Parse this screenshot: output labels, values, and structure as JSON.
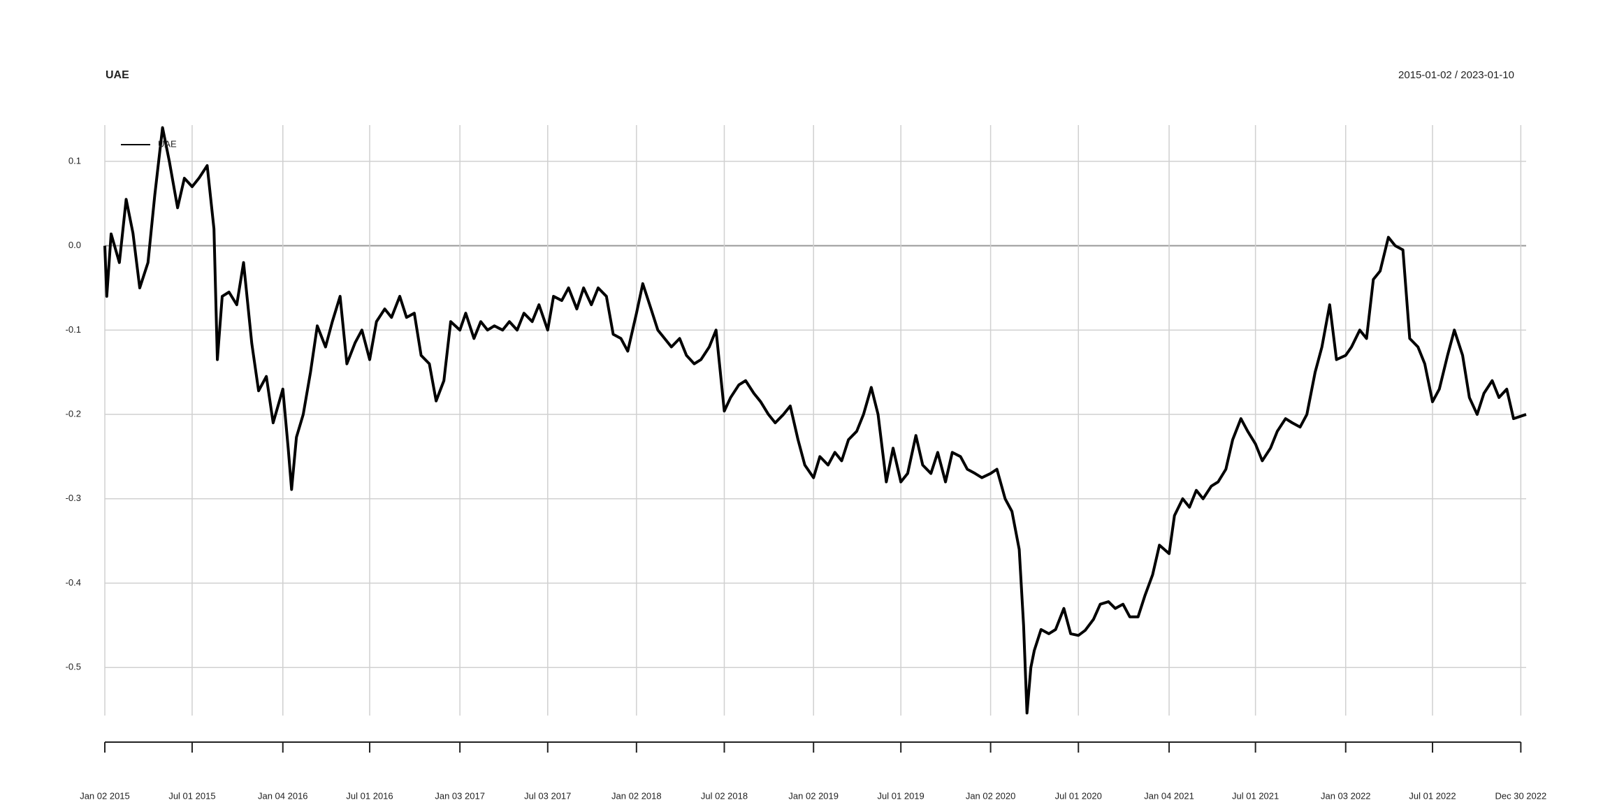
{
  "chart_data": {
    "type": "line",
    "title": "UAE",
    "date_range": "2015-01-02 / 2023-01-10",
    "x": [
      "2015-01-02",
      "2015-01-06",
      "2015-01-15",
      "2015-02-01",
      "2015-02-15",
      "2015-03-01",
      "2015-03-15",
      "2015-04-01",
      "2015-04-15",
      "2015-05-01",
      "2015-05-15",
      "2015-06-01",
      "2015-06-15",
      "2015-07-01",
      "2015-07-15",
      "2015-08-01",
      "2015-08-15",
      "2015-08-22",
      "2015-09-01",
      "2015-09-15",
      "2015-10-01",
      "2015-10-15",
      "2015-11-01",
      "2015-11-15",
      "2015-12-01",
      "2015-12-15",
      "2016-01-04",
      "2016-01-15",
      "2016-01-22",
      "2016-02-01",
      "2016-02-15",
      "2016-03-01",
      "2016-03-15",
      "2016-04-01",
      "2016-04-15",
      "2016-05-01",
      "2016-05-15",
      "2016-06-01",
      "2016-06-15",
      "2016-07-01",
      "2016-07-15",
      "2016-08-01",
      "2016-08-15",
      "2016-09-01",
      "2016-09-15",
      "2016-10-01",
      "2016-10-15",
      "2016-11-01",
      "2016-11-15",
      "2016-12-01",
      "2016-12-15",
      "2017-01-03",
      "2017-01-15",
      "2017-02-01",
      "2017-02-15",
      "2017-03-01",
      "2017-03-15",
      "2017-04-01",
      "2017-04-15",
      "2017-05-01",
      "2017-05-15",
      "2017-06-01",
      "2017-06-15",
      "2017-07-03",
      "2017-07-15",
      "2017-08-01",
      "2017-08-15",
      "2017-09-01",
      "2017-09-15",
      "2017-10-01",
      "2017-10-15",
      "2017-11-01",
      "2017-11-15",
      "2017-12-01",
      "2017-12-15",
      "2018-01-02",
      "2018-01-15",
      "2018-02-01",
      "2018-02-15",
      "2018-03-01",
      "2018-03-15",
      "2018-04-01",
      "2018-04-15",
      "2018-05-01",
      "2018-05-15",
      "2018-06-01",
      "2018-06-15",
      "2018-07-02",
      "2018-07-15",
      "2018-08-01",
      "2018-08-15",
      "2018-09-01",
      "2018-09-15",
      "2018-10-01",
      "2018-10-15",
      "2018-11-01",
      "2018-11-15",
      "2018-12-01",
      "2018-12-15",
      "2019-01-02",
      "2019-01-15",
      "2019-02-01",
      "2019-02-15",
      "2019-03-01",
      "2019-03-15",
      "2019-04-01",
      "2019-04-15",
      "2019-05-01",
      "2019-05-15",
      "2019-06-01",
      "2019-06-15",
      "2019-07-01",
      "2019-07-15",
      "2019-08-01",
      "2019-08-15",
      "2019-09-01",
      "2019-09-15",
      "2019-10-01",
      "2019-10-15",
      "2019-11-01",
      "2019-11-15",
      "2019-12-01",
      "2019-12-15",
      "2020-01-02",
      "2020-01-15",
      "2020-02-01",
      "2020-02-15",
      "2020-03-01",
      "2020-03-10",
      "2020-03-17",
      "2020-03-25",
      "2020-04-01",
      "2020-04-15",
      "2020-05-01",
      "2020-05-15",
      "2020-06-01",
      "2020-06-15",
      "2020-07-01",
      "2020-07-15",
      "2020-08-01",
      "2020-08-15",
      "2020-09-01",
      "2020-09-15",
      "2020-10-01",
      "2020-10-15",
      "2020-11-01",
      "2020-11-15",
      "2020-12-01",
      "2020-12-15",
      "2021-01-04",
      "2021-01-15",
      "2021-02-01",
      "2021-02-15",
      "2021-03-01",
      "2021-03-15",
      "2021-04-01",
      "2021-04-15",
      "2021-05-01",
      "2021-05-15",
      "2021-06-01",
      "2021-06-15",
      "2021-07-01",
      "2021-07-15",
      "2021-08-01",
      "2021-08-15",
      "2021-09-01",
      "2021-09-15",
      "2021-10-01",
      "2021-10-15",
      "2021-11-01",
      "2021-11-15",
      "2021-12-01",
      "2021-12-15",
      "2022-01-03",
      "2022-01-15",
      "2022-02-01",
      "2022-02-15",
      "2022-03-01",
      "2022-03-15",
      "2022-04-01",
      "2022-04-15",
      "2022-05-01",
      "2022-05-15",
      "2022-06-01",
      "2022-06-15",
      "2022-07-01",
      "2022-07-15",
      "2022-08-01",
      "2022-08-15",
      "2022-09-01",
      "2022-09-15",
      "2022-10-01",
      "2022-10-15",
      "2022-11-01",
      "2022-11-15",
      "2022-12-01",
      "2022-12-15",
      "2023-01-10"
    ],
    "series": [
      {
        "name": "UAE",
        "color": "#000000",
        "values": [
          0.0,
          -0.06,
          0.014,
          -0.02,
          0.055,
          0.015,
          -0.05,
          -0.02,
          0.06,
          0.14,
          0.1,
          0.045,
          0.08,
          0.07,
          0.08,
          0.095,
          0.02,
          -0.135,
          -0.06,
          -0.055,
          -0.07,
          -0.02,
          -0.116,
          -0.172,
          -0.155,
          -0.21,
          -0.17,
          -0.24,
          -0.289,
          -0.227,
          -0.2,
          -0.15,
          -0.095,
          -0.12,
          -0.09,
          -0.06,
          -0.14,
          -0.115,
          -0.1,
          -0.135,
          -0.09,
          -0.075,
          -0.085,
          -0.06,
          -0.085,
          -0.08,
          -0.13,
          -0.14,
          -0.184,
          -0.16,
          -0.09,
          -0.1,
          -0.08,
          -0.11,
          -0.09,
          -0.1,
          -0.095,
          -0.1,
          -0.09,
          -0.1,
          -0.08,
          -0.09,
          -0.07,
          -0.1,
          -0.06,
          -0.065,
          -0.05,
          -0.075,
          -0.05,
          -0.07,
          -0.05,
          -0.06,
          -0.105,
          -0.11,
          -0.125,
          -0.08,
          -0.045,
          -0.075,
          -0.1,
          -0.11,
          -0.12,
          -0.11,
          -0.13,
          -0.14,
          -0.135,
          -0.12,
          -0.1,
          -0.196,
          -0.18,
          -0.165,
          -0.16,
          -0.175,
          -0.185,
          -0.2,
          -0.21,
          -0.2,
          -0.19,
          -0.23,
          -0.26,
          -0.275,
          -0.25,
          -0.26,
          -0.245,
          -0.255,
          -0.23,
          -0.22,
          -0.2,
          -0.168,
          -0.2,
          -0.28,
          -0.24,
          -0.28,
          -0.27,
          -0.225,
          -0.26,
          -0.27,
          -0.245,
          -0.28,
          -0.245,
          -0.25,
          -0.265,
          -0.27,
          -0.275,
          -0.27,
          -0.265,
          -0.3,
          -0.315,
          -0.36,
          -0.45,
          -0.554,
          -0.5,
          -0.48,
          -0.455,
          -0.46,
          -0.455,
          -0.43,
          -0.46,
          -0.462,
          -0.456,
          -0.443,
          -0.425,
          -0.422,
          -0.43,
          -0.425,
          -0.44,
          -0.44,
          -0.415,
          -0.39,
          -0.355,
          -0.365,
          -0.32,
          -0.3,
          -0.31,
          -0.29,
          -0.3,
          -0.285,
          -0.28,
          -0.265,
          -0.23,
          -0.205,
          -0.22,
          -0.235,
          -0.255,
          -0.24,
          -0.22,
          -0.205,
          -0.21,
          -0.215,
          -0.2,
          -0.15,
          -0.12,
          -0.07,
          -0.135,
          -0.13,
          -0.12,
          -0.1,
          -0.11,
          -0.04,
          -0.03,
          0.01,
          0.0,
          -0.005,
          -0.11,
          -0.12,
          -0.14,
          -0.185,
          -0.17,
          -0.13,
          -0.1,
          -0.13,
          -0.18,
          -0.2,
          -0.175,
          -0.16,
          -0.18,
          -0.17,
          -0.205,
          -0.2
        ]
      }
    ],
    "xlim": [
      "2015-01-02",
      "2023-01-10"
    ],
    "xticks": [
      {
        "value": "2015-01-02",
        "label": "Jan 02 2015"
      },
      {
        "value": "2015-07-01",
        "label": "Jul 01 2015"
      },
      {
        "value": "2016-01-04",
        "label": "Jan 04 2016"
      },
      {
        "value": "2016-07-01",
        "label": "Jul 01 2016"
      },
      {
        "value": "2017-01-03",
        "label": "Jan 03 2017"
      },
      {
        "value": "2017-07-03",
        "label": "Jul 03 2017"
      },
      {
        "value": "2018-01-02",
        "label": "Jan 02 2018"
      },
      {
        "value": "2018-07-02",
        "label": "Jul 02 2018"
      },
      {
        "value": "2019-01-02",
        "label": "Jan 02 2019"
      },
      {
        "value": "2019-07-01",
        "label": "Jul 01 2019"
      },
      {
        "value": "2020-01-02",
        "label": "Jan 02 2020"
      },
      {
        "value": "2020-07-01",
        "label": "Jul 01 2020"
      },
      {
        "value": "2021-01-04",
        "label": "Jan 04 2021"
      },
      {
        "value": "2021-07-01",
        "label": "Jul 01 2021"
      },
      {
        "value": "2022-01-03",
        "label": "Jan 03 2022"
      },
      {
        "value": "2022-07-01",
        "label": "Jul 01 2022"
      },
      {
        "value": "2022-12-30",
        "label": "Dec 30 2022"
      }
    ],
    "ylim": [
      -0.557,
      0.143
    ],
    "yticks": [
      {
        "value": 0.1,
        "label": "0.1"
      },
      {
        "value": 0,
        "label": "0.0"
      },
      {
        "value": -0.1,
        "label": "-0.1"
      },
      {
        "value": -0.2,
        "label": "-0.2"
      },
      {
        "value": -0.3,
        "label": "-0.3"
      },
      {
        "value": -0.4,
        "label": "-0.4"
      },
      {
        "value": -0.5,
        "label": "-0.5"
      }
    ],
    "grid": true,
    "legend": "top-left"
  }
}
